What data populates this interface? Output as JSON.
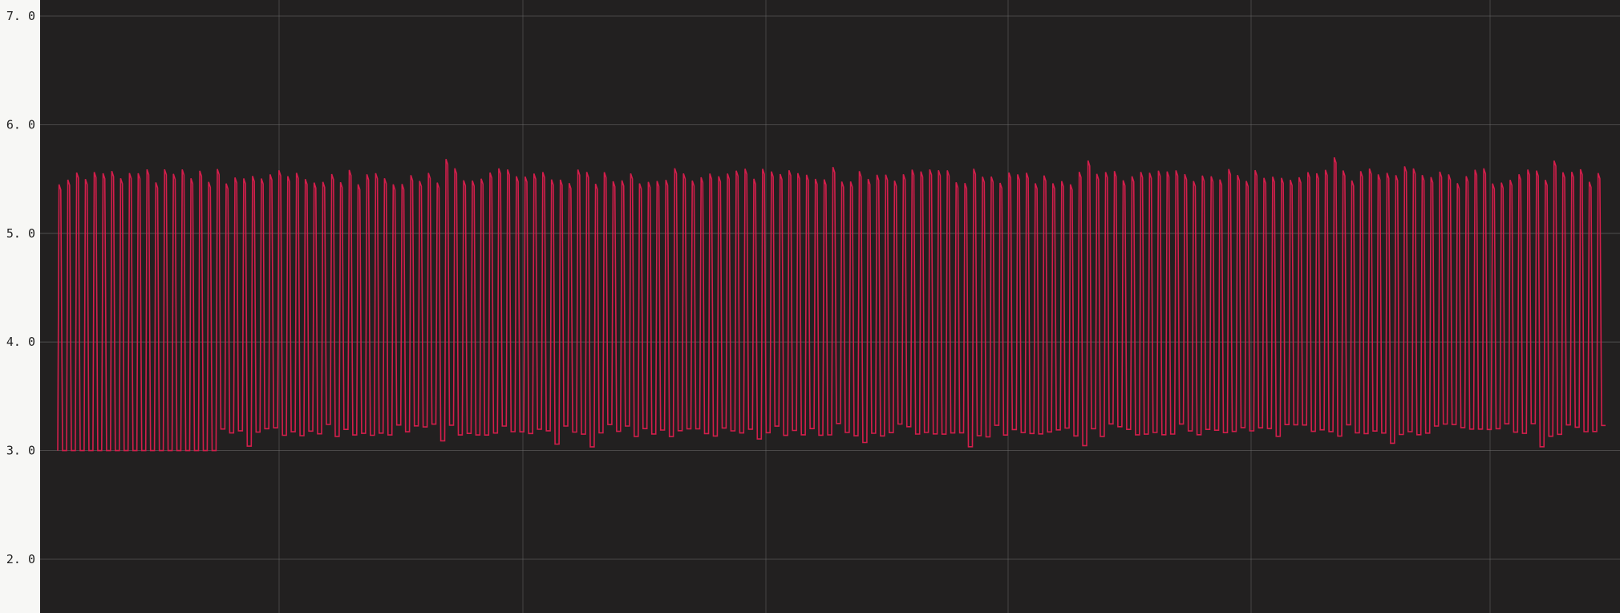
{
  "chart_data": {
    "type": "line",
    "title": "",
    "xlabel": "",
    "ylabel": "",
    "ylim": [
      1.5,
      7.0
    ],
    "yticks": [
      "7.0",
      "6.0",
      "5.0",
      "4.0",
      "3.0",
      "2.0"
    ],
    "grid": true,
    "legend": "none",
    "colors": {
      "background": "#f7f7f5",
      "plot_background": "#222020",
      "grid": "#6e6e6e",
      "series": "#d21e4b"
    },
    "series": [
      {
        "description_free": true,
        "cycles": 176,
        "baseline_values": {
          "segment_1": {
            "cycles": 18,
            "min": 3.0
          },
          "segment_2": {
            "cycles": 158,
            "min": 3.25
          }
        },
        "peak_typical": 5.55,
        "peak_max": 5.7
      }
    ]
  }
}
